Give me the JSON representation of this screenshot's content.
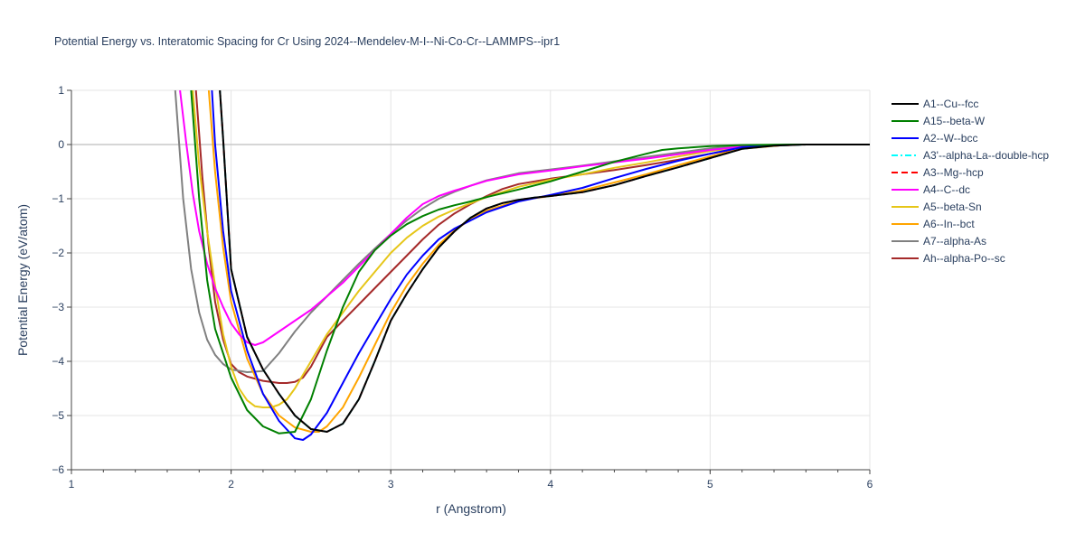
{
  "chart_data": {
    "type": "line",
    "title": "Potential Energy vs. Interatomic Spacing for Cr Using 2024--Mendelev-M-I--Ni-Co-Cr--LAMMPS--ipr1",
    "xlabel": "r (Angstrom)",
    "ylabel": "Potential Energy (eV/atom)",
    "xlim": [
      1,
      6
    ],
    "ylim": [
      -6,
      1
    ],
    "x_ticks": [
      "1",
      "2",
      "3",
      "4",
      "5",
      "6"
    ],
    "y_ticks": [
      "−6",
      "−5",
      "−4",
      "−3",
      "−2",
      "−1",
      "0",
      "1"
    ],
    "grid": true,
    "legend_position": "right",
    "series": [
      {
        "name": "A1--Cu--fcc",
        "color": "#000000",
        "dash": "solid",
        "x": [
          1.93,
          1.95,
          2.0,
          2.1,
          2.2,
          2.3,
          2.4,
          2.5,
          2.6,
          2.7,
          2.8,
          2.9,
          3.0,
          3.1,
          3.2,
          3.3,
          3.4,
          3.5,
          3.6,
          3.7,
          3.8,
          3.9,
          4.0,
          4.2,
          4.4,
          4.6,
          4.8,
          5.0,
          5.2,
          5.4,
          5.6,
          6.0
        ],
        "y": [
          1.0,
          0.1,
          -2.3,
          -3.55,
          -4.15,
          -4.6,
          -5.0,
          -5.25,
          -5.3,
          -5.15,
          -4.7,
          -4.0,
          -3.25,
          -2.75,
          -2.3,
          -1.9,
          -1.6,
          -1.35,
          -1.18,
          -1.08,
          -1.02,
          -0.98,
          -0.95,
          -0.88,
          -0.75,
          -0.58,
          -0.42,
          -0.25,
          -0.08,
          -0.02,
          0.0,
          0.0
        ]
      },
      {
        "name": "A15--beta-W",
        "color": "#008000",
        "dash": "solid",
        "x": [
          1.75,
          1.8,
          1.85,
          1.9,
          2.0,
          2.1,
          2.2,
          2.3,
          2.4,
          2.5,
          2.6,
          2.7,
          2.8,
          2.9,
          3.0,
          3.1,
          3.2,
          3.3,
          3.4,
          3.5,
          3.6,
          3.8,
          4.0,
          4.2,
          4.4,
          4.6,
          4.7,
          4.8,
          5.0,
          5.2,
          5.5,
          6.0
        ],
        "y": [
          1.0,
          -1.0,
          -2.5,
          -3.4,
          -4.3,
          -4.9,
          -5.2,
          -5.33,
          -5.3,
          -4.7,
          -3.8,
          -3.0,
          -2.35,
          -1.95,
          -1.68,
          -1.47,
          -1.32,
          -1.2,
          -1.12,
          -1.05,
          -0.97,
          -0.83,
          -0.68,
          -0.5,
          -0.32,
          -0.17,
          -0.1,
          -0.07,
          -0.03,
          -0.01,
          0.0,
          0.0
        ]
      },
      {
        "name": "A2--W--bcc",
        "color": "#0000ff",
        "dash": "solid",
        "x": [
          1.88,
          1.9,
          1.95,
          2.0,
          2.1,
          2.2,
          2.3,
          2.4,
          2.45,
          2.5,
          2.6,
          2.7,
          2.8,
          2.9,
          3.0,
          3.1,
          3.2,
          3.3,
          3.4,
          3.5,
          3.6,
          3.7,
          3.8,
          4.0,
          4.2,
          4.4,
          4.6,
          4.8,
          5.0,
          5.2,
          5.5,
          6.0
        ],
        "y": [
          1.0,
          0.0,
          -1.6,
          -2.7,
          -3.8,
          -4.6,
          -5.1,
          -5.42,
          -5.45,
          -5.35,
          -4.95,
          -4.4,
          -3.85,
          -3.35,
          -2.85,
          -2.4,
          -2.05,
          -1.75,
          -1.55,
          -1.4,
          -1.25,
          -1.15,
          -1.05,
          -0.93,
          -0.8,
          -0.62,
          -0.45,
          -0.3,
          -0.17,
          -0.05,
          0.0,
          0.0
        ]
      },
      {
        "name": "A3'--alpha-La--double-hcp",
        "color": "#00ffff",
        "dash": "dashdot",
        "x": [
          1.93,
          1.95,
          2.0,
          2.1,
          2.2,
          2.3,
          2.4,
          2.5,
          2.6,
          2.7,
          2.8,
          2.9,
          3.0,
          3.1,
          3.2,
          3.3,
          3.4,
          3.5,
          3.6,
          3.7,
          3.8,
          3.9,
          4.0,
          4.2,
          4.4,
          4.6,
          4.8,
          5.0,
          5.2,
          5.4,
          5.6,
          6.0
        ],
        "y": [
          1.0,
          0.1,
          -2.3,
          -3.55,
          -4.15,
          -4.6,
          -5.0,
          -5.25,
          -5.3,
          -5.15,
          -4.7,
          -4.0,
          -3.25,
          -2.75,
          -2.3,
          -1.9,
          -1.6,
          -1.35,
          -1.18,
          -1.08,
          -1.02,
          -0.98,
          -0.95,
          -0.88,
          -0.75,
          -0.58,
          -0.42,
          -0.25,
          -0.08,
          -0.02,
          0.0,
          0.0
        ]
      },
      {
        "name": "A3--Mg--hcp",
        "color": "#ff0000",
        "dash": "dash",
        "x": [
          1.93,
          1.95,
          2.0,
          2.1,
          2.2,
          2.3,
          2.4,
          2.5,
          2.6,
          2.7,
          2.8,
          2.9,
          3.0,
          3.1,
          3.2,
          3.3,
          3.4,
          3.5,
          3.6,
          3.7,
          3.8,
          3.9,
          4.0,
          4.2,
          4.4,
          4.6,
          4.8,
          5.0,
          5.2,
          5.4,
          5.6,
          6.0
        ],
        "y": [
          1.0,
          0.1,
          -2.3,
          -3.55,
          -4.15,
          -4.6,
          -5.0,
          -5.25,
          -5.3,
          -5.15,
          -4.7,
          -4.0,
          -3.25,
          -2.75,
          -2.3,
          -1.9,
          -1.6,
          -1.35,
          -1.18,
          -1.08,
          -1.02,
          -0.98,
          -0.95,
          -0.88,
          -0.75,
          -0.58,
          -0.42,
          -0.25,
          -0.08,
          -0.02,
          0.0,
          0.0
        ]
      },
      {
        "name": "A4--C--dc",
        "color": "#ff00ff",
        "dash": "solid",
        "x": [
          1.68,
          1.72,
          1.76,
          1.8,
          1.85,
          1.9,
          1.95,
          2.0,
          2.05,
          2.1,
          2.15,
          2.2,
          2.3,
          2.4,
          2.5,
          2.6,
          2.7,
          2.8,
          2.9,
          3.0,
          3.1,
          3.2,
          3.3,
          3.4,
          3.6,
          3.8,
          4.0,
          4.2,
          4.4,
          4.6,
          4.8,
          5.0,
          5.2,
          5.5,
          6.0
        ],
        "y": [
          1.0,
          0.0,
          -0.9,
          -1.6,
          -2.2,
          -2.65,
          -3.0,
          -3.3,
          -3.5,
          -3.65,
          -3.7,
          -3.65,
          -3.45,
          -3.25,
          -3.05,
          -2.8,
          -2.55,
          -2.25,
          -1.95,
          -1.65,
          -1.35,
          -1.1,
          -0.95,
          -0.85,
          -0.67,
          -0.55,
          -0.48,
          -0.4,
          -0.33,
          -0.26,
          -0.18,
          -0.1,
          -0.04,
          0.0,
          0.0
        ]
      },
      {
        "name": "A5--beta-Sn",
        "color": "#e6c619",
        "dash": "solid",
        "x": [
          1.76,
          1.8,
          1.85,
          1.9,
          1.95,
          2.0,
          2.05,
          2.1,
          2.15,
          2.2,
          2.25,
          2.3,
          2.35,
          2.4,
          2.5,
          2.6,
          2.7,
          2.8,
          2.9,
          3.0,
          3.1,
          3.2,
          3.3,
          3.4,
          3.6,
          3.8,
          4.0,
          4.2,
          4.4,
          4.6,
          4.8,
          5.0,
          5.2,
          5.5,
          6.0
        ],
        "y": [
          1.0,
          -0.4,
          -1.6,
          -2.6,
          -3.5,
          -4.1,
          -4.5,
          -4.72,
          -4.83,
          -4.85,
          -4.85,
          -4.8,
          -4.7,
          -4.5,
          -4.0,
          -3.5,
          -3.1,
          -2.7,
          -2.35,
          -2.0,
          -1.72,
          -1.5,
          -1.33,
          -1.2,
          -0.97,
          -0.78,
          -0.65,
          -0.55,
          -0.43,
          -0.33,
          -0.22,
          -0.12,
          -0.05,
          0.0,
          0.0
        ]
      },
      {
        "name": "A6--In--bct",
        "color": "#ffa500",
        "dash": "solid",
        "x": [
          1.86,
          1.9,
          1.95,
          2.0,
          2.1,
          2.2,
          2.3,
          2.4,
          2.5,
          2.55,
          2.6,
          2.7,
          2.8,
          2.9,
          3.0,
          3.1,
          3.2,
          3.3,
          3.4,
          3.5,
          3.6,
          3.8,
          4.0,
          4.2,
          4.4,
          4.6,
          4.8,
          5.0,
          5.2,
          5.5,
          6.0
        ],
        "y": [
          1.0,
          -0.5,
          -1.9,
          -2.9,
          -3.95,
          -4.6,
          -5.0,
          -5.22,
          -5.3,
          -5.3,
          -5.2,
          -4.85,
          -4.3,
          -3.7,
          -3.1,
          -2.6,
          -2.2,
          -1.85,
          -1.58,
          -1.38,
          -1.22,
          -1.03,
          -0.95,
          -0.85,
          -0.7,
          -0.55,
          -0.38,
          -0.22,
          -0.08,
          0.0,
          0.0
        ]
      },
      {
        "name": "A7--alpha-As",
        "color": "#808080",
        "dash": "solid",
        "x": [
          1.65,
          1.7,
          1.75,
          1.8,
          1.85,
          1.9,
          1.95,
          2.0,
          2.1,
          2.2,
          2.3,
          2.4,
          2.5,
          2.6,
          2.7,
          2.8,
          2.9,
          3.0,
          3.1,
          3.2,
          3.3,
          3.4,
          3.5,
          3.6,
          3.8,
          4.0,
          4.2,
          4.4,
          4.6,
          4.8,
          5.0,
          5.2,
          5.5,
          6.0
        ],
        "y": [
          1.0,
          -1.0,
          -2.3,
          -3.1,
          -3.6,
          -3.88,
          -4.05,
          -4.15,
          -4.2,
          -4.18,
          -3.85,
          -3.45,
          -3.1,
          -2.8,
          -2.5,
          -2.2,
          -1.92,
          -1.65,
          -1.4,
          -1.18,
          -1.0,
          -0.87,
          -0.76,
          -0.66,
          -0.53,
          -0.46,
          -0.39,
          -0.31,
          -0.23,
          -0.15,
          -0.07,
          -0.02,
          0.0,
          0.0
        ]
      },
      {
        "name": "Ah--alpha-Po--sc",
        "color": "#a52a2a",
        "dash": "solid",
        "x": [
          1.78,
          1.82,
          1.86,
          1.9,
          1.95,
          2.0,
          2.05,
          2.1,
          2.2,
          2.3,
          2.35,
          2.4,
          2.45,
          2.5,
          2.6,
          2.7,
          2.8,
          2.9,
          3.0,
          3.1,
          3.2,
          3.3,
          3.4,
          3.5,
          3.6,
          3.7,
          3.8,
          4.0,
          4.2,
          4.4,
          4.6,
          4.8,
          5.0,
          5.2,
          5.5,
          6.0
        ],
        "y": [
          1.0,
          -0.6,
          -1.9,
          -2.9,
          -3.6,
          -4.05,
          -4.2,
          -4.28,
          -4.36,
          -4.4,
          -4.4,
          -4.38,
          -4.3,
          -4.1,
          -3.55,
          -3.25,
          -2.95,
          -2.65,
          -2.35,
          -2.05,
          -1.75,
          -1.48,
          -1.27,
          -1.1,
          -0.95,
          -0.82,
          -0.73,
          -0.63,
          -0.55,
          -0.47,
          -0.38,
          -0.28,
          -0.17,
          -0.07,
          0.0,
          0.0
        ]
      }
    ]
  }
}
